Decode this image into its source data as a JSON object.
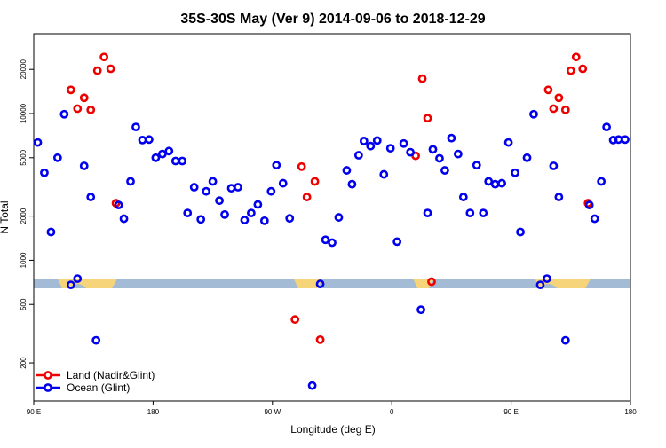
{
  "chart_data": {
    "type": "scatter",
    "title": "35S-30S May (Ver 9)   2014-09-06 to 2018-12-29",
    "xlabel": "Longitude (deg E)",
    "ylabel": "N Total",
    "x_scale": "linear",
    "y_scale": "log",
    "xlim": [
      90,
      540
    ],
    "ylim": [
      110,
      35000
    ],
    "x_ticks": [
      {
        "value": 90,
        "label": "90 E"
      },
      {
        "value": 180,
        "label": "180"
      },
      {
        "value": 270,
        "label": "90 W"
      },
      {
        "value": 360,
        "label": "0"
      },
      {
        "value": 450,
        "label": "90 E"
      },
      {
        "value": 540,
        "label": "180"
      }
    ],
    "y_ticks": [
      {
        "value": 200,
        "label": "200"
      },
      {
        "value": 500,
        "label": "500"
      },
      {
        "value": 1000,
        "label": "1000"
      },
      {
        "value": 2000,
        "label": "2000"
      },
      {
        "value": 5000,
        "label": "5000"
      },
      {
        "value": 10000,
        "label": "10000"
      },
      {
        "value": 20000,
        "label": "20000"
      }
    ],
    "legend_position": "bottom-left",
    "colors": {
      "land": "#ee0000",
      "ocean": "#0000ee",
      "band": "#a4bbd6",
      "landmass": "#f6d57a"
    },
    "band_note": "Horizontal strip near N≈700 shows a longitude map band (ocean blue, land yellow)",
    "series": [
      {
        "name": "Land (Nadir&Glint)",
        "color": "#ee0000",
        "points": [
          {
            "x": 118,
            "y": 14500
          },
          {
            "x": 123,
            "y": 10800
          },
          {
            "x": 128,
            "y": 12800
          },
          {
            "x": 133,
            "y": 10600
          },
          {
            "x": 138,
            "y": 19600
          },
          {
            "x": 143,
            "y": 24300
          },
          {
            "x": 148,
            "y": 20200
          },
          {
            "x": 152,
            "y": 2450
          },
          {
            "x": 292,
            "y": 4350
          },
          {
            "x": 296,
            "y": 2700
          },
          {
            "x": 302,
            "y": 3450
          },
          {
            "x": 287,
            "y": 395
          },
          {
            "x": 306,
            "y": 288
          },
          {
            "x": 378,
            "y": 5150
          },
          {
            "x": 383,
            "y": 17300
          },
          {
            "x": 387,
            "y": 9300
          },
          {
            "x": 390,
            "y": 715
          },
          {
            "x": 478,
            "y": 14500
          },
          {
            "x": 482,
            "y": 10800
          },
          {
            "x": 486,
            "y": 12800
          },
          {
            "x": 491,
            "y": 10600
          },
          {
            "x": 495,
            "y": 19600
          },
          {
            "x": 499,
            "y": 24300
          },
          {
            "x": 504,
            "y": 20200
          },
          {
            "x": 508,
            "y": 2450
          }
        ]
      },
      {
        "name": "Ocean (Glint)",
        "color": "#0000ee",
        "points": [
          {
            "x": 93,
            "y": 6350
          },
          {
            "x": 98,
            "y": 3950
          },
          {
            "x": 103,
            "y": 1560
          },
          {
            "x": 108,
            "y": 5000
          },
          {
            "x": 113,
            "y": 9900
          },
          {
            "x": 118,
            "y": 680
          },
          {
            "x": 123,
            "y": 750
          },
          {
            "x": 128,
            "y": 4400
          },
          {
            "x": 133,
            "y": 2700
          },
          {
            "x": 137,
            "y": 285
          },
          {
            "x": 154,
            "y": 2380
          },
          {
            "x": 158,
            "y": 1920
          },
          {
            "x": 163,
            "y": 3450
          },
          {
            "x": 167,
            "y": 8100
          },
          {
            "x": 172,
            "y": 6600
          },
          {
            "x": 177,
            "y": 6650
          },
          {
            "x": 182,
            "y": 5000
          },
          {
            "x": 187,
            "y": 5300
          },
          {
            "x": 192,
            "y": 5550
          },
          {
            "x": 197,
            "y": 4750
          },
          {
            "x": 202,
            "y": 4750
          },
          {
            "x": 206,
            "y": 2100
          },
          {
            "x": 211,
            "y": 3150
          },
          {
            "x": 216,
            "y": 1900
          },
          {
            "x": 220,
            "y": 2950
          },
          {
            "x": 225,
            "y": 3450
          },
          {
            "x": 230,
            "y": 2550
          },
          {
            "x": 234,
            "y": 2050
          },
          {
            "x": 239,
            "y": 3100
          },
          {
            "x": 244,
            "y": 3150
          },
          {
            "x": 249,
            "y": 1880
          },
          {
            "x": 254,
            "y": 2100
          },
          {
            "x": 259,
            "y": 2400
          },
          {
            "x": 264,
            "y": 1860
          },
          {
            "x": 269,
            "y": 2950
          },
          {
            "x": 273,
            "y": 4450
          },
          {
            "x": 278,
            "y": 3350
          },
          {
            "x": 283,
            "y": 1930
          },
          {
            "x": 300,
            "y": 140
          },
          {
            "x": 306,
            "y": 690
          },
          {
            "x": 310,
            "y": 1380
          },
          {
            "x": 315,
            "y": 1320
          },
          {
            "x": 320,
            "y": 1960
          },
          {
            "x": 326,
            "y": 4100
          },
          {
            "x": 330,
            "y": 3300
          },
          {
            "x": 335,
            "y": 5200
          },
          {
            "x": 339,
            "y": 6500
          },
          {
            "x": 344,
            "y": 6000
          },
          {
            "x": 349,
            "y": 6550
          },
          {
            "x": 354,
            "y": 3850
          },
          {
            "x": 359,
            "y": 5800
          },
          {
            "x": 364,
            "y": 1340
          },
          {
            "x": 369,
            "y": 6250
          },
          {
            "x": 374,
            "y": 5450
          },
          {
            "x": 382,
            "y": 460
          },
          {
            "x": 387,
            "y": 2100
          },
          {
            "x": 391,
            "y": 5700
          },
          {
            "x": 396,
            "y": 4950
          },
          {
            "x": 400,
            "y": 4100
          },
          {
            "x": 405,
            "y": 6800
          },
          {
            "x": 410,
            "y": 5300
          },
          {
            "x": 414,
            "y": 2700
          },
          {
            "x": 419,
            "y": 2100
          },
          {
            "x": 424,
            "y": 4450
          },
          {
            "x": 429,
            "y": 2100
          },
          {
            "x": 433,
            "y": 3450
          },
          {
            "x": 438,
            "y": 3300
          },
          {
            "x": 443,
            "y": 3350
          },
          {
            "x": 448,
            "y": 6350
          },
          {
            "x": 453,
            "y": 3950
          },
          {
            "x": 457,
            "y": 1560
          },
          {
            "x": 462,
            "y": 5000
          },
          {
            "x": 467,
            "y": 9900
          },
          {
            "x": 472,
            "y": 680
          },
          {
            "x": 477,
            "y": 750
          },
          {
            "x": 482,
            "y": 4400
          },
          {
            "x": 486,
            "y": 2700
          },
          {
            "x": 491,
            "y": 285
          },
          {
            "x": 509,
            "y": 2380
          },
          {
            "x": 513,
            "y": 1920
          },
          {
            "x": 518,
            "y": 3450
          },
          {
            "x": 522,
            "y": 8100
          },
          {
            "x": 527,
            "y": 6600
          },
          {
            "x": 531,
            "y": 6650
          },
          {
            "x": 536,
            "y": 6650
          }
        ]
      }
    ]
  }
}
